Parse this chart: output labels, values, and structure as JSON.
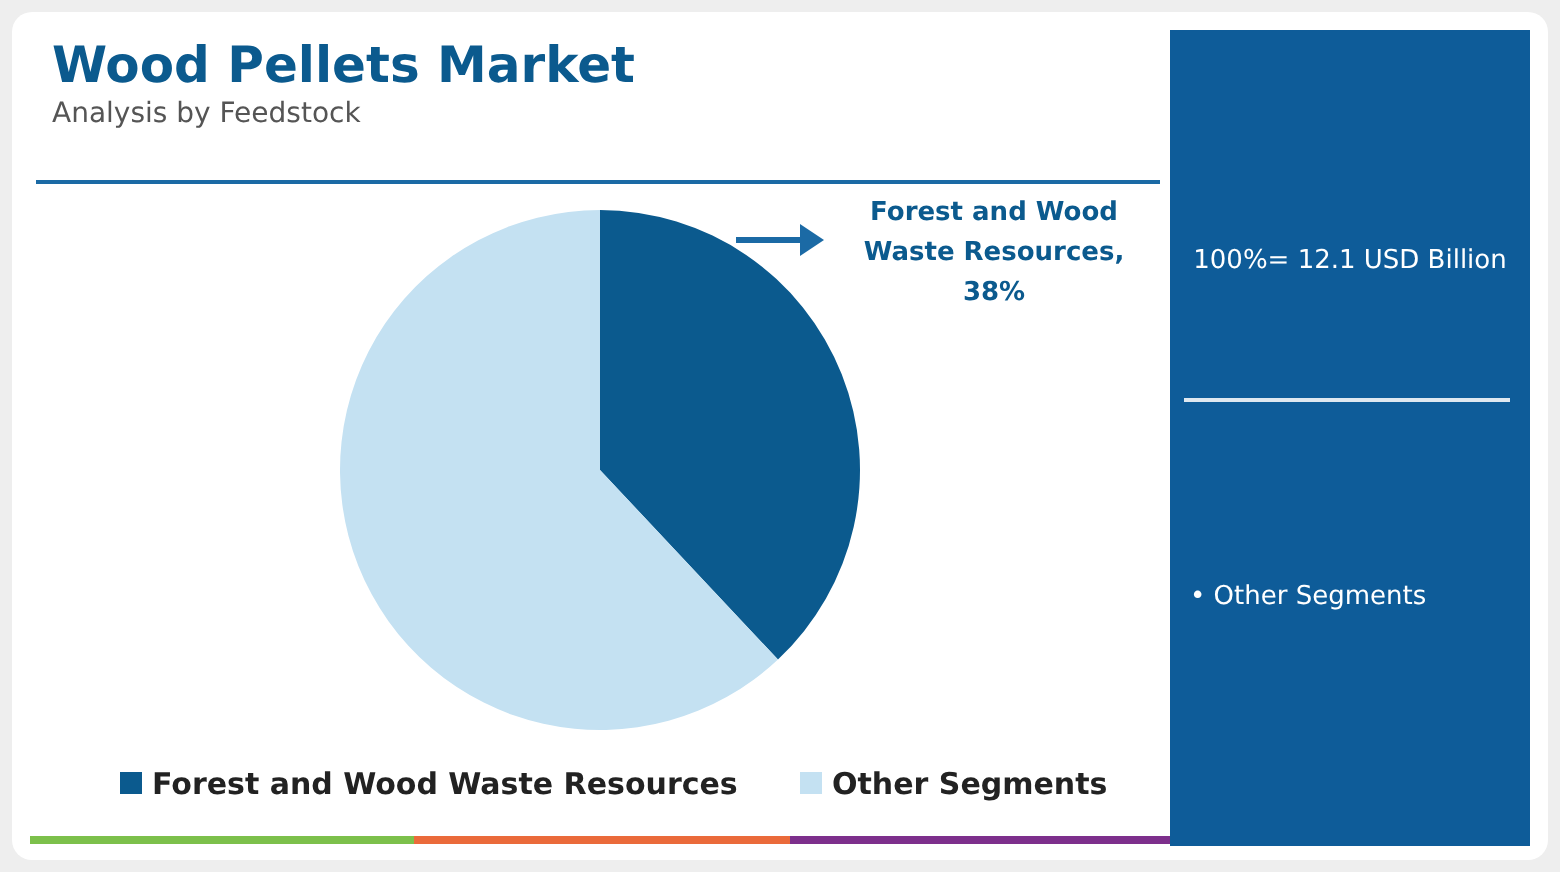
{
  "chart_data": {
    "type": "pie",
    "title": "Wood Pellets Market",
    "subtitle": "Analysis by Feedstock",
    "categories": [
      "Forest and Wood Waste Resources",
      "Other Segments"
    ],
    "values": [
      38,
      62
    ],
    "colors": [
      "#0b5a8e",
      "#c4e1f2"
    ],
    "value_labels": [
      "Forest and Wood Waste Resources, 38%",
      null
    ],
    "legend": "bottom",
    "annotations": [
      "100%= 12.1 USD Billion",
      "• Other Segments"
    ]
  }
}
